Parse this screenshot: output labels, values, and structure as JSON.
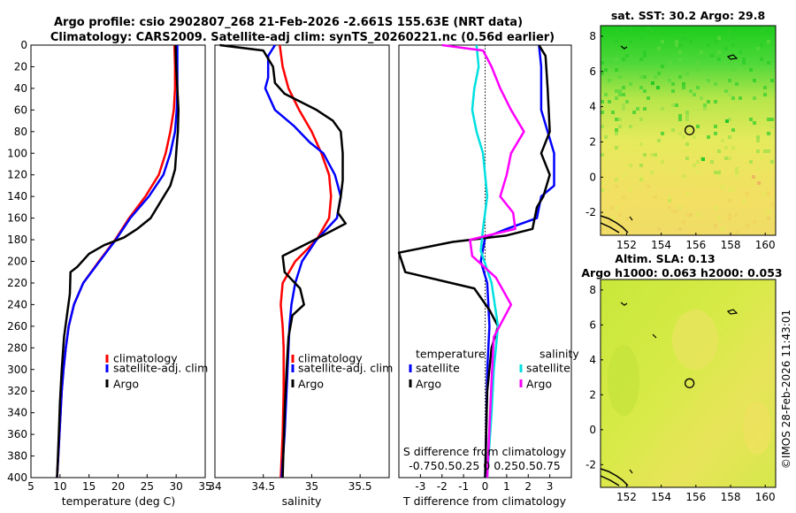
{
  "title_line1": "Argo profile: csio 2902807_268 21-Feb-2026 -2.661S 155.63E (NRT data)",
  "title_line2": "Climatology: CARS2009. Satellite-adj clim: synTS_20260221.nc (0.56d earlier)",
  "copyright": "©IMOS 28-Feb-2026 11:43:01",
  "colors": {
    "climatology": "#ff0000",
    "satellite": "#0000ff",
    "argo": "#000000",
    "sat_salinity": "#00e0e0",
    "argo_salinity": "#ff00ff"
  },
  "chart_data": [
    {
      "id": "temperature",
      "type": "line",
      "xlabel": "temperature (deg C)",
      "xlim": [
        5,
        35
      ],
      "ylim": [
        400,
        0
      ],
      "xticks": [
        "5",
        "10",
        "15",
        "20",
        "25",
        "30",
        "35"
      ],
      "yticks": [
        "0",
        "20",
        "40",
        "60",
        "80",
        "100",
        "120",
        "140",
        "160",
        "180",
        "200",
        "220",
        "240",
        "260",
        "280",
        "300",
        "320",
        "340",
        "360",
        "380",
        "400"
      ],
      "legend": [
        "climatology",
        "satellite-adj. clim",
        "Argo"
      ],
      "series": [
        {
          "name": "climatology",
          "color": "#ff0000",
          "points": [
            [
              29.7,
              0
            ],
            [
              29.8,
              20
            ],
            [
              29.8,
              40
            ],
            [
              29.6,
              60
            ],
            [
              29.0,
              80
            ],
            [
              28.2,
              100
            ],
            [
              27.0,
              120
            ],
            [
              24.7,
              140
            ],
            [
              21.9,
              160
            ],
            [
              19.5,
              180
            ],
            [
              16.7,
              200
            ],
            [
              14.0,
              220
            ],
            [
              12.4,
              240
            ],
            [
              11.5,
              260
            ],
            [
              11.0,
              280
            ],
            [
              10.6,
              300
            ],
            [
              10.3,
              320
            ],
            [
              10.1,
              340
            ],
            [
              9.9,
              360
            ],
            [
              9.7,
              380
            ],
            [
              9.5,
              400
            ]
          ]
        },
        {
          "name": "satellite-adj. clim",
          "color": "#0000ff",
          "points": [
            [
              30.2,
              0
            ],
            [
              30.2,
              20
            ],
            [
              30.2,
              40
            ],
            [
              30.1,
              60
            ],
            [
              29.8,
              80
            ],
            [
              29.0,
              100
            ],
            [
              27.8,
              120
            ],
            [
              25.3,
              140
            ],
            [
              22.1,
              160
            ],
            [
              19.6,
              180
            ],
            [
              16.8,
              200
            ],
            [
              14.0,
              220
            ],
            [
              12.4,
              240
            ],
            [
              11.5,
              260
            ],
            [
              11.0,
              280
            ],
            [
              10.6,
              300
            ],
            [
              10.3,
              320
            ],
            [
              10.1,
              340
            ],
            [
              9.9,
              360
            ],
            [
              9.7,
              380
            ],
            [
              9.5,
              400
            ]
          ]
        },
        {
          "name": "Argo",
          "color": "#000000",
          "points": [
            [
              29.9,
              0
            ],
            [
              30.0,
              20
            ],
            [
              30.2,
              40
            ],
            [
              30.4,
              60
            ],
            [
              30.3,
              80
            ],
            [
              30.0,
              100
            ],
            [
              29.8,
              115
            ],
            [
              29.0,
              130
            ],
            [
              27.3,
              145
            ],
            [
              25.6,
              160
            ],
            [
              23.3,
              170
            ],
            [
              21.0,
              178
            ],
            [
              17.6,
              185
            ],
            [
              15.0,
              193
            ],
            [
              13.0,
              205
            ],
            [
              11.8,
              210
            ],
            [
              11.7,
              230
            ],
            [
              11.2,
              250
            ],
            [
              10.7,
              270
            ],
            [
              10.3,
              300
            ],
            [
              10.0,
              330
            ],
            [
              9.8,
              360
            ],
            [
              9.5,
              400
            ]
          ]
        }
      ]
    },
    {
      "id": "salinity",
      "type": "line",
      "xlabel": "salinity",
      "xlim": [
        34,
        35.8
      ],
      "ylim": [
        400,
        0
      ],
      "xticks": [
        "34",
        "34.5",
        "35",
        "35.5"
      ],
      "legend": [
        "climatology",
        "satellite-adj. clim",
        "Argo"
      ],
      "series": [
        {
          "name": "climatology",
          "color": "#ff0000",
          "points": [
            [
              34.67,
              0
            ],
            [
              34.7,
              20
            ],
            [
              34.76,
              40
            ],
            [
              34.87,
              60
            ],
            [
              35.0,
              80
            ],
            [
              35.1,
              100
            ],
            [
              35.18,
              120
            ],
            [
              35.2,
              140
            ],
            [
              35.18,
              160
            ],
            [
              35.05,
              180
            ],
            [
              34.83,
              200
            ],
            [
              34.7,
              220
            ],
            [
              34.68,
              240
            ],
            [
              34.7,
              260
            ],
            [
              34.71,
              280
            ],
            [
              34.71,
              320
            ],
            [
              34.7,
              360
            ],
            [
              34.68,
              400
            ]
          ]
        },
        {
          "name": "satellite-adj. clim",
          "color": "#0000ff",
          "points": [
            [
              34.62,
              0
            ],
            [
              34.55,
              10
            ],
            [
              34.55,
              30
            ],
            [
              34.52,
              40
            ],
            [
              34.62,
              60
            ],
            [
              34.82,
              75
            ],
            [
              34.98,
              90
            ],
            [
              35.12,
              100
            ],
            [
              35.24,
              120
            ],
            [
              35.3,
              140
            ],
            [
              35.26,
              160
            ],
            [
              35.05,
              180
            ],
            [
              34.9,
              200
            ],
            [
              34.83,
              220
            ],
            [
              34.79,
              240
            ],
            [
              34.77,
              260
            ],
            [
              34.76,
              280
            ],
            [
              34.74,
              320
            ],
            [
              34.72,
              360
            ],
            [
              34.69,
              400
            ]
          ]
        },
        {
          "name": "Argo",
          "color": "#000000",
          "points": [
            [
              34.05,
              0
            ],
            [
              34.5,
              5
            ],
            [
              34.6,
              20
            ],
            [
              34.62,
              35
            ],
            [
              34.72,
              45
            ],
            [
              35.05,
              60
            ],
            [
              35.22,
              70
            ],
            [
              35.3,
              80
            ],
            [
              35.32,
              100
            ],
            [
              35.32,
              125
            ],
            [
              35.3,
              140
            ],
            [
              35.27,
              155
            ],
            [
              35.35,
              165
            ],
            [
              35.03,
              180
            ],
            [
              34.7,
              195
            ],
            [
              34.72,
              210
            ],
            [
              34.88,
              225
            ],
            [
              34.92,
              240
            ],
            [
              34.8,
              250
            ],
            [
              34.76,
              270
            ],
            [
              34.74,
              300
            ],
            [
              34.72,
              340
            ],
            [
              34.7,
              400
            ]
          ]
        }
      ]
    },
    {
      "id": "difference",
      "type": "line",
      "xlabel": "T difference from climatology",
      "xlabel_top": "S difference from climatology",
      "xlim": [
        -4,
        4
      ],
      "ylim": [
        400,
        0
      ],
      "xticks": [
        "-3",
        "-2",
        "-1",
        "0",
        "1",
        "2",
        "3"
      ],
      "s_ticks": "-0.750.50.25 0 0.250.50.75",
      "legend_groups": [
        "temperature",
        "salinity"
      ],
      "legend": [
        "satellite",
        "Argo",
        "satellite",
        "Argo"
      ],
      "series": [
        {
          "name": "temperature satellite",
          "color": "#0000ff",
          "points": [
            [
              2.5,
              0
            ],
            [
              2.6,
              20
            ],
            [
              2.6,
              60
            ],
            [
              2.9,
              80
            ],
            [
              3.2,
              100
            ],
            [
              3.2,
              130
            ],
            [
              2.6,
              140
            ],
            [
              2.4,
              160
            ],
            [
              1.0,
              170
            ],
            [
              0.0,
              178
            ],
            [
              -0.2,
              200
            ],
            [
              0.1,
              220
            ],
            [
              0.2,
              260
            ],
            [
              0.1,
              300
            ],
            [
              0.05,
              360
            ],
            [
              0.0,
              400
            ]
          ]
        },
        {
          "name": "temperature Argo",
          "color": "#000000",
          "points": [
            [
              2.5,
              0
            ],
            [
              2.8,
              10
            ],
            [
              2.9,
              40
            ],
            [
              3.0,
              80
            ],
            [
              2.6,
              100
            ],
            [
              3.0,
              120
            ],
            [
              2.7,
              140
            ],
            [
              2.4,
              150
            ],
            [
              2.2,
              170
            ],
            [
              1.0,
              176
            ],
            [
              -1.5,
              182
            ],
            [
              -4.0,
              192
            ],
            [
              -3.7,
              210
            ],
            [
              -0.5,
              225
            ],
            [
              0.2,
              245
            ],
            [
              0.6,
              260
            ],
            [
              0.3,
              280
            ],
            [
              0.1,
              320
            ],
            [
              0.0,
              400
            ]
          ]
        },
        {
          "name": "salinity satellite",
          "color": "#00e0e0",
          "points": [
            [
              -0.4,
              0
            ],
            [
              -0.3,
              20
            ],
            [
              -0.5,
              40
            ],
            [
              -0.6,
              60
            ],
            [
              -0.4,
              80
            ],
            [
              -0.1,
              100
            ],
            [
              0.1,
              140
            ],
            [
              -0.1,
              170
            ],
            [
              -0.2,
              190
            ],
            [
              0.3,
              220
            ],
            [
              0.6,
              260
            ],
            [
              0.4,
              300
            ],
            [
              0.3,
              340
            ],
            [
              0.1,
              400
            ]
          ]
        },
        {
          "name": "salinity Argo",
          "color": "#ff00ff",
          "points": [
            [
              -2.0,
              0
            ],
            [
              -0.1,
              5
            ],
            [
              0.3,
              20
            ],
            [
              0.7,
              40
            ],
            [
              1.2,
              60
            ],
            [
              1.8,
              80
            ],
            [
              1.2,
              100
            ],
            [
              1.0,
              120
            ],
            [
              0.7,
              140
            ],
            [
              1.3,
              155
            ],
            [
              1.4,
              170
            ],
            [
              -0.7,
              180
            ],
            [
              -0.6,
              195
            ],
            [
              0.5,
              215
            ],
            [
              1.2,
              240
            ],
            [
              0.4,
              270
            ],
            [
              0.3,
              310
            ],
            [
              0.1,
              400
            ]
          ]
        }
      ]
    },
    {
      "id": "sst_map",
      "type": "heatmap",
      "title": "sat. SST: 30.2 Argo: 29.8",
      "xlim": [
        150.5,
        160.6
      ],
      "ylim": [
        -3.3,
        8.6
      ],
      "xticks": [
        "152",
        "154",
        "156",
        "158",
        "160"
      ],
      "yticks": [
        "-2",
        "0",
        "2",
        "4",
        "6",
        "8"
      ],
      "marker": [
        155.63,
        2.66
      ]
    },
    {
      "id": "sla_map",
      "type": "heatmap",
      "title_line1": "Altim. SLA: 0.13",
      "title_line2": "Argo h1000: 0.063 h2000: 0.053",
      "xlim": [
        150.5,
        160.6
      ],
      "ylim": [
        -3.3,
        8.6
      ],
      "xticks": [
        "152",
        "154",
        "156",
        "158",
        "160"
      ],
      "yticks": [
        "-2",
        "0",
        "2",
        "4",
        "6",
        "8"
      ],
      "marker": [
        155.63,
        2.66
      ]
    }
  ]
}
